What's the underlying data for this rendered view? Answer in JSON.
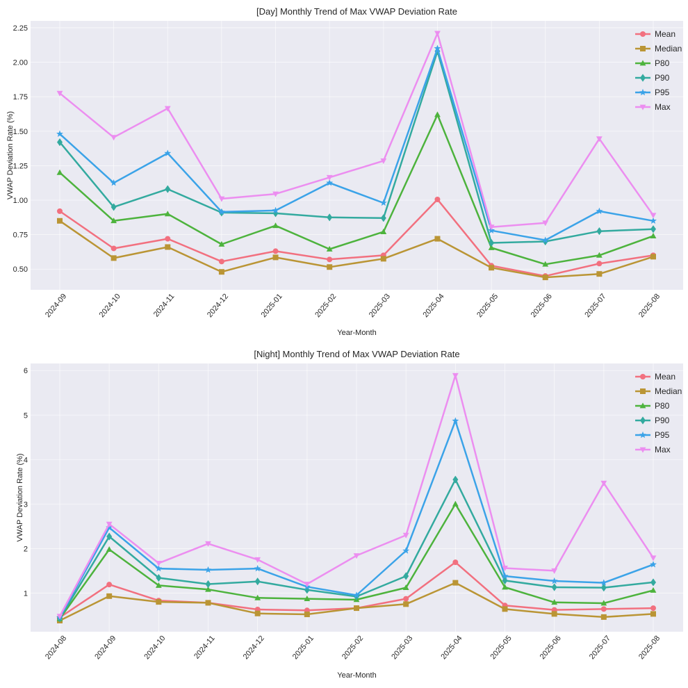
{
  "chart_data": [
    {
      "type": "line",
      "title": "[Day] Monthly Trend of Max VWAP Deviation Rate",
      "xlabel": "Year-Month",
      "ylabel": "VWAP Deviation Rate (%)",
      "ylim": [
        0.35,
        2.3
      ],
      "yticks": [
        0.5,
        0.75,
        1.0,
        1.25,
        1.5,
        1.75,
        2.0,
        2.25
      ],
      "ytick_labels": [
        "0.50",
        "0.75",
        "1.00",
        "1.25",
        "1.50",
        "1.75",
        "2.00",
        "2.25"
      ],
      "grid": true,
      "legend": "top-right",
      "categories": [
        "2024-09",
        "2024-10",
        "2024-11",
        "2024-12",
        "2025-01",
        "2025-02",
        "2025-03",
        "2025-04",
        "2025-05",
        "2025-06",
        "2025-07",
        "2025-08"
      ],
      "series": [
        {
          "name": "Mean",
          "color": "#f2707f",
          "marker": "circle",
          "values": [
            0.92,
            0.65,
            0.72,
            0.555,
            0.63,
            0.57,
            0.6,
            1.005,
            0.525,
            0.45,
            0.54,
            0.6
          ]
        },
        {
          "name": "Median",
          "color": "#ba9535",
          "marker": "square",
          "values": [
            0.85,
            0.58,
            0.66,
            0.48,
            0.585,
            0.515,
            0.575,
            0.72,
            0.51,
            0.44,
            0.465,
            0.59
          ]
        },
        {
          "name": "P80",
          "color": "#4db33d",
          "marker": "triangle",
          "values": [
            1.2,
            0.85,
            0.9,
            0.68,
            0.815,
            0.645,
            0.77,
            1.62,
            0.655,
            0.535,
            0.6,
            0.74
          ]
        },
        {
          "name": "P90",
          "color": "#33aa9f",
          "marker": "diamond",
          "values": [
            1.42,
            0.95,
            1.08,
            0.91,
            0.905,
            0.875,
            0.87,
            2.08,
            0.69,
            0.7,
            0.775,
            0.79
          ]
        },
        {
          "name": "P95",
          "color": "#3ba3e8",
          "marker": "star",
          "values": [
            1.48,
            1.125,
            1.34,
            0.915,
            0.925,
            1.125,
            0.98,
            2.1,
            0.78,
            0.71,
            0.92,
            0.85
          ]
        },
        {
          "name": "Max",
          "color": "#ec8ef0",
          "marker": "triangle-down",
          "values": [
            1.775,
            1.455,
            1.665,
            1.01,
            1.045,
            1.165,
            1.285,
            2.21,
            0.805,
            0.835,
            1.445,
            0.89
          ]
        }
      ]
    },
    {
      "type": "line",
      "title": "[Night] Monthly Trend of Max VWAP Deviation Rate",
      "xlabel": "Year-Month",
      "ylabel": "VWAP Deviation Rate (%)",
      "ylim": [
        0.13,
        6.16
      ],
      "yticks": [
        1,
        2,
        3,
        4,
        5,
        6
      ],
      "ytick_labels": [
        "1",
        "2",
        "3",
        "4",
        "5",
        "6"
      ],
      "grid": true,
      "legend": "top-right",
      "categories": [
        "2024-08",
        "2024-09",
        "2024-10",
        "2024-11",
        "2024-12",
        "2025-01",
        "2025-02",
        "2025-03",
        "2025-04",
        "2025-05",
        "2025-06",
        "2025-07",
        "2025-08"
      ],
      "series": [
        {
          "name": "Mean",
          "color": "#f2707f",
          "marker": "circle",
          "values": [
            0.45,
            1.19,
            0.83,
            0.78,
            0.63,
            0.61,
            0.66,
            0.87,
            1.69,
            0.72,
            0.62,
            0.64,
            0.66
          ]
        },
        {
          "name": "Median",
          "color": "#ba9535",
          "marker": "square",
          "values": [
            0.38,
            0.93,
            0.8,
            0.78,
            0.54,
            0.52,
            0.66,
            0.75,
            1.23,
            0.64,
            0.53,
            0.46,
            0.53
          ]
        },
        {
          "name": "P80",
          "color": "#4db33d",
          "marker": "triangle",
          "values": [
            0.42,
            1.98,
            1.17,
            1.08,
            0.89,
            0.87,
            0.85,
            1.12,
            3.0,
            1.13,
            0.79,
            0.77,
            1.06
          ]
        },
        {
          "name": "P90",
          "color": "#33aa9f",
          "marker": "diamond",
          "values": [
            0.43,
            2.27,
            1.34,
            1.2,
            1.26,
            1.07,
            0.92,
            1.38,
            3.55,
            1.28,
            1.13,
            1.12,
            1.24
          ]
        },
        {
          "name": "P95",
          "color": "#3ba3e8",
          "marker": "star",
          "values": [
            0.45,
            2.47,
            1.55,
            1.52,
            1.55,
            1.14,
            0.95,
            1.95,
            4.87,
            1.38,
            1.27,
            1.23,
            1.64
          ]
        },
        {
          "name": "Max",
          "color": "#ec8ef0",
          "marker": "triangle-down",
          "values": [
            0.48,
            2.55,
            1.67,
            2.11,
            1.75,
            1.2,
            1.84,
            2.3,
            5.89,
            1.56,
            1.5,
            3.47,
            1.79
          ]
        }
      ]
    }
  ]
}
